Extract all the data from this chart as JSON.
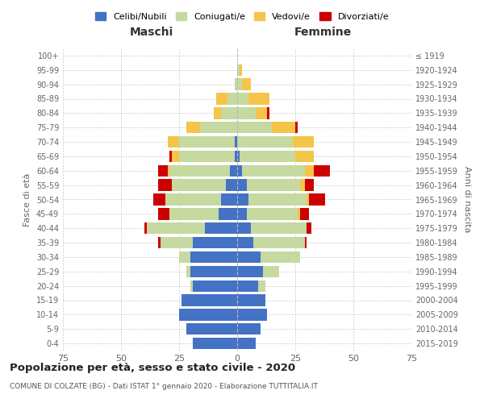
{
  "age_groups": [
    "0-4",
    "5-9",
    "10-14",
    "15-19",
    "20-24",
    "25-29",
    "30-34",
    "35-39",
    "40-44",
    "45-49",
    "50-54",
    "55-59",
    "60-64",
    "65-69",
    "70-74",
    "75-79",
    "80-84",
    "85-89",
    "90-94",
    "95-99",
    "100+"
  ],
  "birth_years": [
    "2015-2019",
    "2010-2014",
    "2005-2009",
    "2000-2004",
    "1995-1999",
    "1990-1994",
    "1985-1989",
    "1980-1984",
    "1975-1979",
    "1970-1974",
    "1965-1969",
    "1960-1964",
    "1955-1959",
    "1950-1954",
    "1945-1949",
    "1940-1944",
    "1935-1939",
    "1930-1934",
    "1925-1929",
    "1920-1924",
    "≤ 1919"
  ],
  "male": {
    "celibi": [
      19,
      22,
      25,
      24,
      19,
      20,
      20,
      19,
      14,
      8,
      7,
      5,
      3,
      1,
      1,
      0,
      0,
      0,
      0,
      0,
      0
    ],
    "coniugati": [
      0,
      0,
      0,
      0,
      1,
      2,
      5,
      14,
      25,
      21,
      24,
      23,
      26,
      24,
      24,
      16,
      7,
      4,
      1,
      0,
      0
    ],
    "vedovi": [
      0,
      0,
      0,
      0,
      0,
      0,
      0,
      0,
      0,
      0,
      0,
      0,
      1,
      3,
      5,
      6,
      3,
      5,
      0,
      0,
      0
    ],
    "divorziati": [
      0,
      0,
      0,
      0,
      0,
      0,
      0,
      1,
      1,
      5,
      5,
      6,
      4,
      1,
      0,
      0,
      0,
      0,
      0,
      0,
      0
    ]
  },
  "female": {
    "nubili": [
      8,
      10,
      13,
      12,
      9,
      11,
      10,
      7,
      6,
      4,
      5,
      4,
      2,
      1,
      0,
      0,
      0,
      0,
      0,
      0,
      0
    ],
    "coniugate": [
      0,
      0,
      0,
      0,
      3,
      7,
      17,
      22,
      24,
      22,
      25,
      23,
      27,
      24,
      24,
      15,
      8,
      5,
      2,
      1,
      0
    ],
    "vedove": [
      0,
      0,
      0,
      0,
      0,
      0,
      0,
      0,
      0,
      1,
      1,
      2,
      4,
      8,
      9,
      10,
      5,
      9,
      4,
      1,
      0
    ],
    "divorziate": [
      0,
      0,
      0,
      0,
      0,
      0,
      0,
      1,
      2,
      4,
      7,
      4,
      7,
      0,
      0,
      1,
      1,
      0,
      0,
      0,
      0
    ]
  },
  "colors": {
    "celibi_nubili": "#4472C4",
    "coniugati": "#C5D9A0",
    "vedovi": "#F5C54A",
    "divorziati": "#CC0000"
  },
  "xlim": 75,
  "title": "Popolazione per età, sesso e stato civile - 2020",
  "subtitle": "COMUNE DI COLZATE (BG) - Dati ISTAT 1° gennaio 2020 - Elaborazione TUTTITALIA.IT",
  "xlabel_left": "Maschi",
  "xlabel_right": "Femmine",
  "ylabel_left": "Fasce di età",
  "ylabel_right": "Anni di nascita",
  "legend_labels": [
    "Celibi/Nubili",
    "Coniugati/e",
    "Vedovi/e",
    "Divorziati/e"
  ],
  "bg_color": "#ffffff",
  "grid_color": "#cccccc"
}
